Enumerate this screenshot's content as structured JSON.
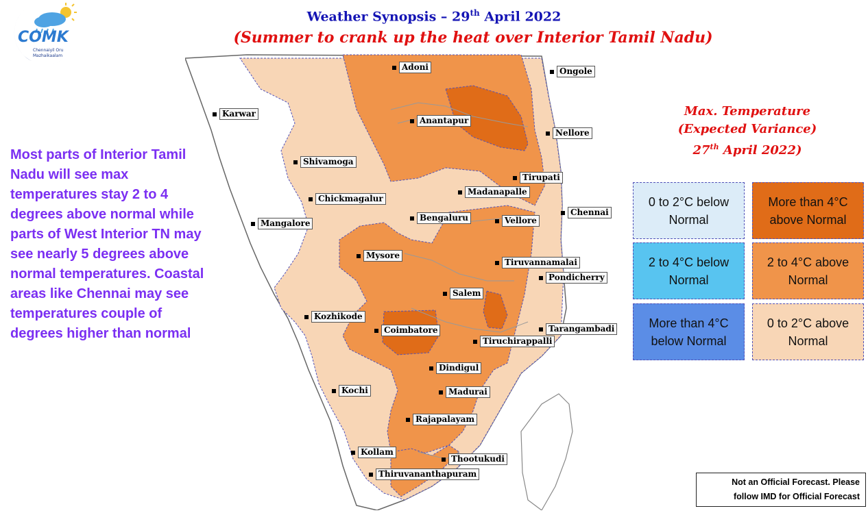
{
  "header": {
    "title_main": "Weather Synopsis – 29",
    "title_sup": "th",
    "title_tail": " April 2022",
    "subtitle": "(Summer to crank up the heat over Interior Tamil Nadu)"
  },
  "logo": {
    "text": "COMK",
    "tagline_1": "Chennaiyil Oru",
    "tagline_2": "Mazhaikaalam",
    "icon": "sun-cloud-moon-logo"
  },
  "description": "Most parts of Interior Tamil Nadu will see max temperatures stay 2 to 4 degrees above normal while parts of West Interior TN may see nearly 5 degrees above normal temperatures. Coastal areas like Chennai may see temperatures couple of degrees higher than normal",
  "legend": {
    "heading_1": "Max. Temperature",
    "heading_2": "(Expected Variance)",
    "heading_3_main": "27",
    "heading_3_sup": "th",
    "heading_3_tail": " April 2022)",
    "items": [
      {
        "label": "0 to 2°C below Normal",
        "color": "#dcecf8"
      },
      {
        "label": "More than 4°C above Normal",
        "color": "#e06c18"
      },
      {
        "label": "2 to 4°C below Normal",
        "color": "#58c4f0"
      },
      {
        "label": "2 to 4°C above Normal",
        "color": "#f0944a"
      },
      {
        "label": "More than 4°C below Normal",
        "color": "#5b8de6"
      },
      {
        "label": "0 to 2°C  above Normal",
        "color": "#f8d6b6"
      }
    ]
  },
  "map": {
    "colors": {
      "light": "#f8d6b6",
      "medium": "#f0944a",
      "dark": "#e06c18",
      "boundary": "#5151b8"
    },
    "cities": [
      "Adoni",
      "Ongole",
      "Karwar",
      "Anantapur",
      "Nellore",
      "Shivamoga",
      "Tirupati",
      "Madanapalle",
      "Chickmagalur",
      "Chennai",
      "Mangalore",
      "Bengaluru",
      "Vellore",
      "Mysore",
      "Tiruvannamalai",
      "Pondicherry",
      "Salem",
      "Kozhikode",
      "Coimbatore",
      "Tarangambadi",
      "Tiruchirappalli",
      "Dindigul",
      "Kochi",
      "Madurai",
      "Rajapalayam",
      "Kollam",
      "Thootukudi",
      "Thiruvananthapuram"
    ]
  },
  "disclaimer": {
    "line_1": "Not an Official Forecast. Please",
    "line_2": "follow IMD for Official Forecast"
  }
}
